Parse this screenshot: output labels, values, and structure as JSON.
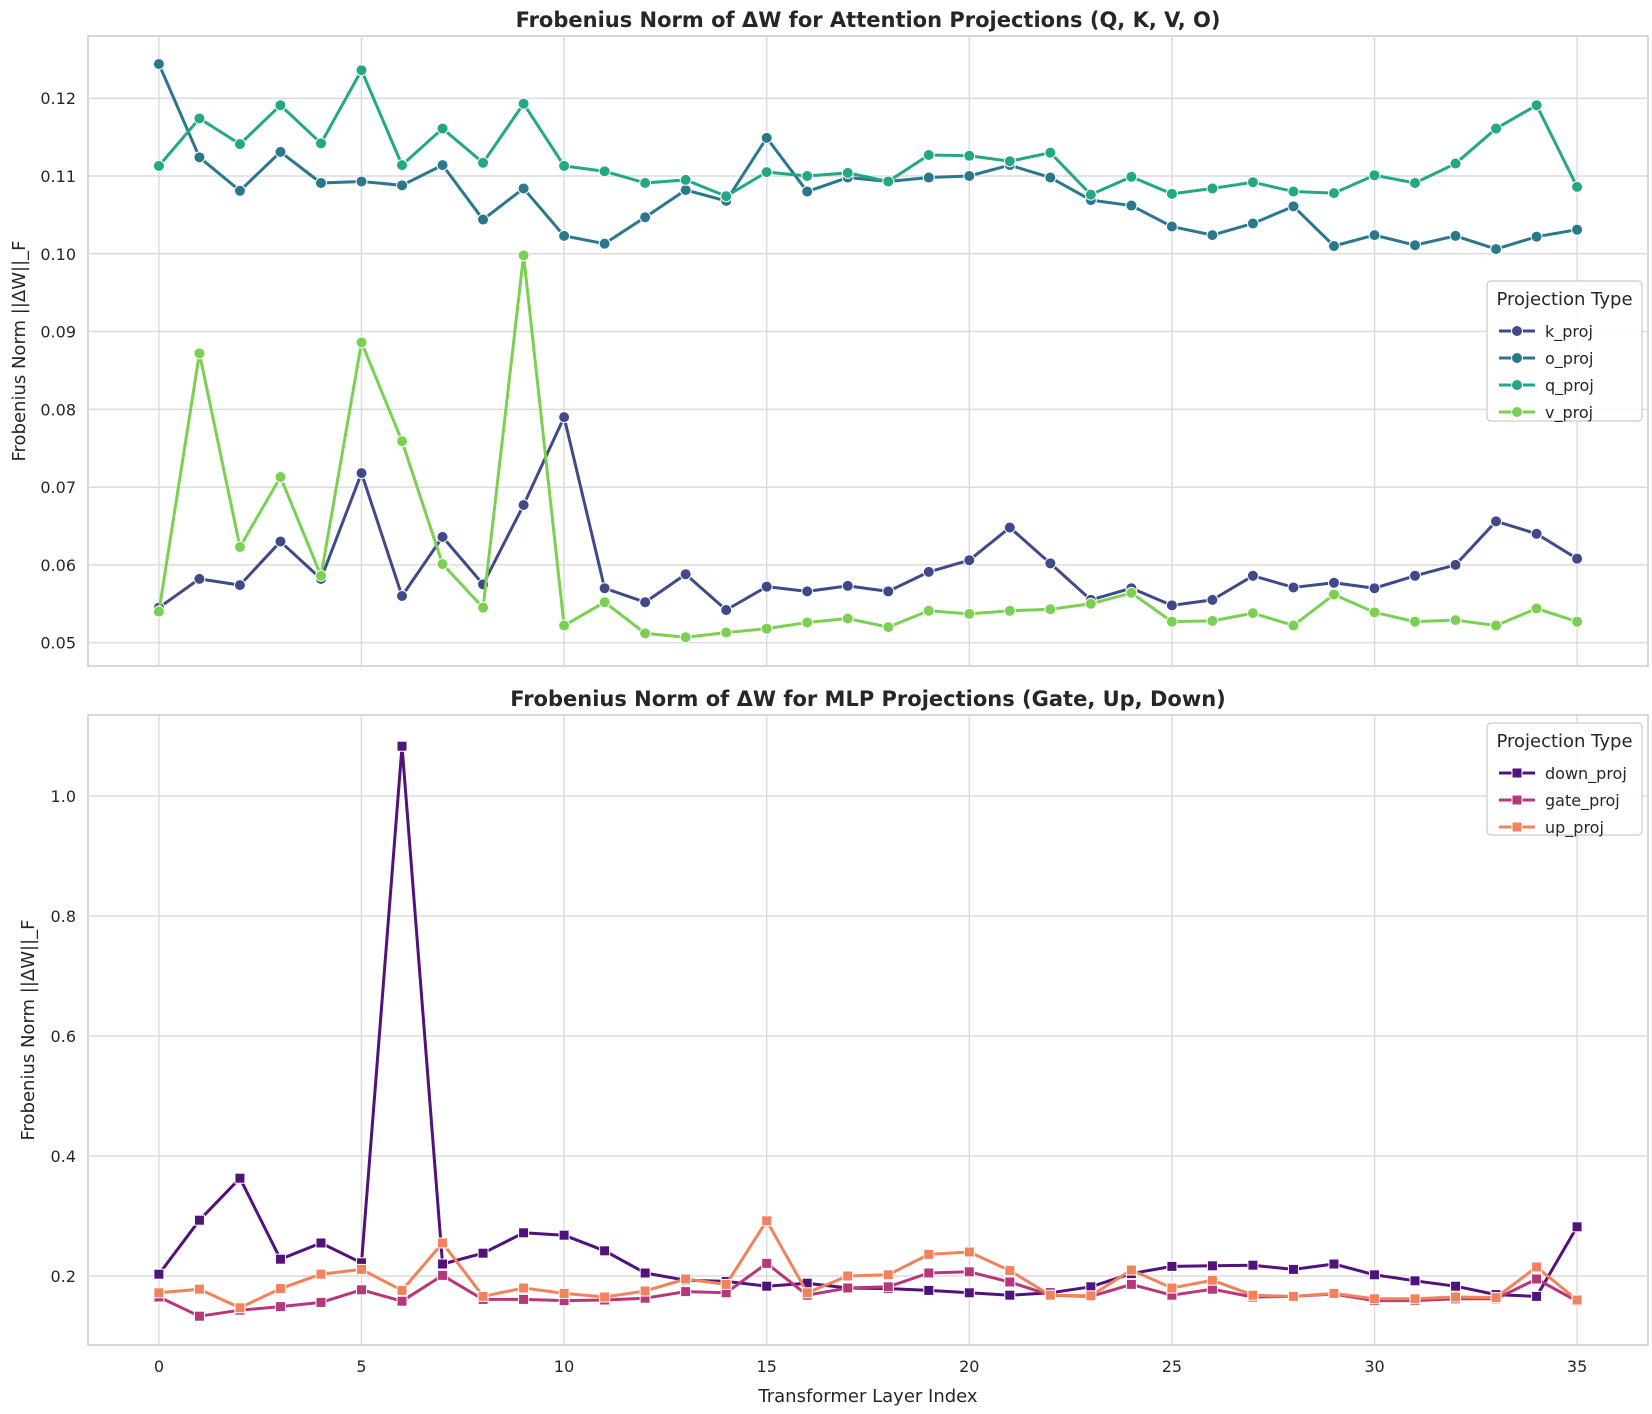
{
  "chart_data": [
    {
      "type": "line",
      "title": "Frobenius Norm of ΔW for Attention Projections (Q, K, V, O)",
      "xlabel": "",
      "ylabel": "Frobenius Norm ||ΔW||_F",
      "xlim": [
        -1.75,
        36.75
      ],
      "ylim": [
        0.047,
        0.128
      ],
      "xticks": [
        0,
        5,
        10,
        15,
        20,
        25,
        30,
        35
      ],
      "yticks": [
        0.05,
        0.06,
        0.07,
        0.08,
        0.09,
        0.1,
        0.11,
        0.12
      ],
      "ytick_labels": [
        "0.05",
        "0.06",
        "0.07",
        "0.08",
        "0.09",
        "0.10",
        "0.11",
        "0.12"
      ],
      "show_xtick_labels": false,
      "grid": true,
      "marker": "circle",
      "legend": {
        "title": "Projection Type",
        "placement": "center-right"
      },
      "x": [
        0,
        1,
        2,
        3,
        4,
        5,
        6,
        7,
        8,
        9,
        10,
        11,
        12,
        13,
        14,
        15,
        16,
        17,
        18,
        19,
        20,
        21,
        22,
        23,
        24,
        25,
        26,
        27,
        28,
        29,
        30,
        31,
        32,
        33,
        34,
        35
      ],
      "series": [
        {
          "name": "k_proj",
          "color": "#3e4a89",
          "values": [
            0.0545,
            0.0582,
            0.0574,
            0.063,
            0.0582,
            0.0718,
            0.056,
            0.0636,
            0.0575,
            0.0677,
            0.079,
            0.057,
            0.0552,
            0.0588,
            0.0542,
            0.0572,
            0.0566,
            0.0573,
            0.0566,
            0.0591,
            0.0606,
            0.0648,
            0.0602,
            0.0555,
            0.057,
            0.0548,
            0.0555,
            0.0586,
            0.0571,
            0.0577,
            0.057,
            0.0586,
            0.06,
            0.0656,
            0.064,
            0.0608
          ]
        },
        {
          "name": "o_proj",
          "color": "#2a788e",
          "values": [
            0.1244,
            0.1124,
            0.1081,
            0.1131,
            0.1091,
            0.1093,
            0.1088,
            0.1114,
            0.1044,
            0.1084,
            0.1023,
            0.1013,
            0.1047,
            0.1082,
            0.1068,
            0.1149,
            0.108,
            0.1098,
            0.1093,
            0.1098,
            0.11,
            0.1114,
            0.1098,
            0.1069,
            0.1062,
            0.1035,
            0.1024,
            0.1039,
            0.1061,
            0.101,
            0.1024,
            0.1011,
            0.1023,
            0.1006,
            0.1022,
            0.1031
          ]
        },
        {
          "name": "q_proj",
          "color": "#22a884",
          "values": [
            0.1113,
            0.1174,
            0.1141,
            0.1191,
            0.1142,
            0.1236,
            0.1114,
            0.1161,
            0.1117,
            0.1193,
            0.1113,
            0.1106,
            0.1091,
            0.1095,
            0.1074,
            0.1105,
            0.11,
            0.1104,
            0.1093,
            0.1127,
            0.1126,
            0.1119,
            0.113,
            0.1076,
            0.1099,
            0.1077,
            0.1084,
            0.1092,
            0.108,
            0.1078,
            0.1101,
            0.1091,
            0.1116,
            0.1161,
            0.1191,
            0.1086
          ]
        },
        {
          "name": "v_proj",
          "color": "#7ad151",
          "values": [
            0.054,
            0.0872,
            0.0623,
            0.0713,
            0.0586,
            0.0886,
            0.0759,
            0.0601,
            0.0545,
            0.0998,
            0.0522,
            0.0552,
            0.0512,
            0.0507,
            0.0513,
            0.0518,
            0.0526,
            0.0531,
            0.052,
            0.0541,
            0.0537,
            0.0541,
            0.0543,
            0.055,
            0.0564,
            0.0527,
            0.0528,
            0.0538,
            0.0522,
            0.0562,
            0.0539,
            0.0527,
            0.0529,
            0.0522,
            0.0544,
            0.0527
          ]
        }
      ]
    },
    {
      "type": "line",
      "title": "Frobenius Norm of ΔW for MLP Projections (Gate, Up, Down)",
      "xlabel": "Transformer Layer Index",
      "ylabel": "Frobenius Norm ||ΔW||_F",
      "xlim": [
        -1.75,
        36.75
      ],
      "ylim": [
        0.085,
        1.135
      ],
      "xticks": [
        0,
        5,
        10,
        15,
        20,
        25,
        30,
        35
      ],
      "xtick_labels": [
        "0",
        "5",
        "10",
        "15",
        "20",
        "25",
        "30",
        "35"
      ],
      "yticks": [
        0.2,
        0.4,
        0.6,
        0.8,
        1.0
      ],
      "ytick_labels": [
        "0.2",
        "0.4",
        "0.6",
        "0.8",
        "1.0"
      ],
      "show_xtick_labels": true,
      "grid": true,
      "marker": "square",
      "legend": {
        "title": "Projection Type",
        "placement": "top-right"
      },
      "x": [
        0,
        1,
        2,
        3,
        4,
        5,
        6,
        7,
        8,
        9,
        10,
        11,
        12,
        13,
        14,
        15,
        16,
        17,
        18,
        19,
        20,
        21,
        22,
        23,
        24,
        25,
        26,
        27,
        28,
        29,
        30,
        31,
        32,
        33,
        34,
        35
      ],
      "series": [
        {
          "name": "down_proj",
          "color": "#51127c",
          "values": [
            0.203,
            0.293,
            0.363,
            0.228,
            0.255,
            0.222,
            1.083,
            0.22,
            0.238,
            0.272,
            0.268,
            0.242,
            0.205,
            0.193,
            0.191,
            0.183,
            0.188,
            0.18,
            0.179,
            0.176,
            0.172,
            0.168,
            0.172,
            0.182,
            0.204,
            0.216,
            0.217,
            0.218,
            0.211,
            0.22,
            0.202,
            0.192,
            0.183,
            0.169,
            0.166,
            0.282
          ]
        },
        {
          "name": "gate_proj",
          "color": "#b73779",
          "values": [
            0.165,
            0.133,
            0.143,
            0.149,
            0.156,
            0.177,
            0.158,
            0.201,
            0.161,
            0.161,
            0.159,
            0.16,
            0.163,
            0.174,
            0.172,
            0.221,
            0.168,
            0.18,
            0.182,
            0.205,
            0.207,
            0.19,
            0.168,
            0.166,
            0.186,
            0.168,
            0.178,
            0.165,
            0.166,
            0.17,
            0.159,
            0.159,
            0.162,
            0.162,
            0.195,
            0.158
          ]
        },
        {
          "name": "up_proj",
          "color": "#f1825c",
          "values": [
            0.172,
            0.178,
            0.147,
            0.179,
            0.203,
            0.211,
            0.176,
            0.255,
            0.166,
            0.18,
            0.171,
            0.165,
            0.175,
            0.195,
            0.186,
            0.292,
            0.172,
            0.2,
            0.202,
            0.236,
            0.24,
            0.209,
            0.168,
            0.167,
            0.21,
            0.18,
            0.193,
            0.168,
            0.166,
            0.171,
            0.162,
            0.162,
            0.165,
            0.164,
            0.215,
            0.16
          ]
        }
      ]
    }
  ]
}
